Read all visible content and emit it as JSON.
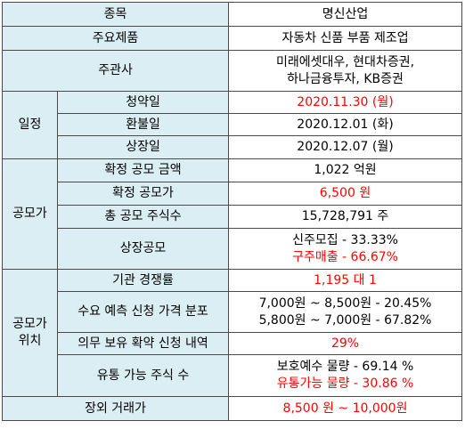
{
  "table": {
    "stock_name": {
      "label": "종목",
      "value": "명신산업"
    },
    "main_product": {
      "label": "주요제품",
      "value": "자동차 신품 부품 제조업"
    },
    "underwriters": {
      "label": "주관사",
      "lines": [
        "미래에셋대우, 현대차증권,",
        "하나금융투자, KB증권"
      ]
    },
    "schedule": {
      "group_label": "일정",
      "rows": [
        {
          "label": "청약일",
          "value": "2020.11.30 (월)",
          "color": "#ff0000"
        },
        {
          "label": "환불일",
          "value": "2020.12.01 (화)",
          "color": "#000000"
        },
        {
          "label": "상장일",
          "value": "2020.12.07 (월)",
          "color": "#000000"
        }
      ]
    },
    "offering": {
      "group_label": "공모가",
      "total_amount": {
        "label": "확정 공모 금액",
        "value": "1,022 억원"
      },
      "offer_price": {
        "label": "확정 공모가",
        "value": "6,500 원",
        "color": "#ff0000"
      },
      "total_shares": {
        "label": "총 공모 주식수",
        "value": "15,728,791 주"
      },
      "listing_offer": {
        "label": "상장공모",
        "lines": [
          {
            "text": "신주모집 - 33.33%",
            "color": "#000000"
          },
          {
            "text": "구주매출 - 66.67%",
            "color": "#ff0000"
          }
        ]
      }
    },
    "offer_position": {
      "group_label_lines": [
        "공모가",
        "위치"
      ],
      "competition": {
        "label": "기관 경쟁률",
        "value": "1,195 대 1",
        "color": "#ff0000"
      },
      "demand_forecast": {
        "label": "수요 예측 신청 가격 분포",
        "lines": [
          "7,000원 ~ 8,500원 - 20.45%",
          "5,800원 ~ 7,000원 - 67.82%"
        ]
      },
      "lockup": {
        "label": "의무 보유 확약 신청 내역",
        "value": "29%",
        "color": "#ff0000"
      },
      "tradable_shares": {
        "label": "유통 가능 주식 수",
        "lines": [
          {
            "text": "보호예수 물량 - 69.14 %",
            "color": "#000000"
          },
          {
            "text": "유통가능 물량 - 30.86 %",
            "color": "#ff0000"
          }
        ]
      }
    },
    "otc_price": {
      "label": "장외 거래가",
      "value": "8,500 원 ~ 10,000원",
      "color": "#ff0000"
    }
  },
  "colors": {
    "header_bg": "#daeef3",
    "value_bg": "#ffffff",
    "highlight": "#ff0000",
    "border": "#4a4a4a"
  }
}
